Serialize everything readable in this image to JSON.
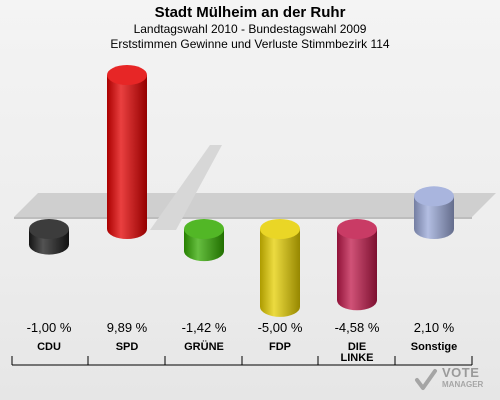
{
  "header": {
    "title": "Stadt Mülheim an der Ruhr",
    "subtitle1": "Landtagswahl 2010 - Bundestagswahl 2009",
    "subtitle2": "Erststimmen Gewinne und Verluste Stimmbezirk 114"
  },
  "chart_data": {
    "type": "bar",
    "title": "Stadt Mülheim an der Ruhr",
    "subtitle": "Landtagswahl 2010 - Bundestagswahl 2009 / Erststimmen Gewinne und Verluste Stimmbezirk 114",
    "categories": [
      "CDU",
      "SPD",
      "GRÜNE",
      "FDP",
      "DIE LINKE",
      "Sonstige"
    ],
    "values": [
      -1.0,
      9.89,
      -1.42,
      -5.0,
      -4.58,
      2.1
    ],
    "value_labels": [
      "-1,00 %",
      "9,89 %",
      "-1,42 %",
      "-5,00 %",
      "-4,58 %",
      "2,10 %"
    ],
    "colors": [
      "#1a1a1a",
      "#e30000",
      "#33aa00",
      "#e6cf00",
      "#c0184a",
      "#9aa8d8"
    ],
    "xlabel": "",
    "ylabel": "",
    "grid": false
  },
  "watermark": {
    "text": "VOTE",
    "sub": "MANAGER"
  }
}
